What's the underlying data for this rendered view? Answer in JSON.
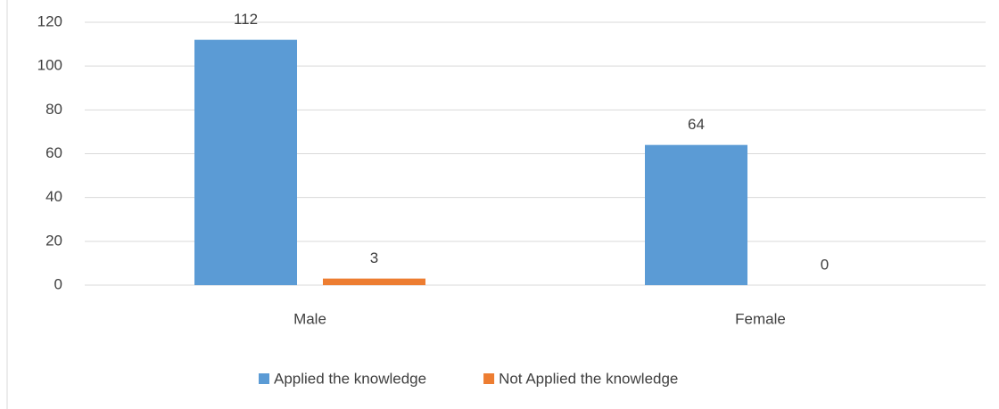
{
  "chart_data": {
    "type": "bar",
    "categories": [
      "Male",
      "Female"
    ],
    "series": [
      {
        "name": "Applied the knowledge",
        "color": "#5b9bd5",
        "values": [
          112,
          64
        ]
      },
      {
        "name": "Not Applied the knowledge",
        "color": "#ed7d31",
        "values": [
          3,
          0
        ]
      }
    ],
    "ylim": [
      0,
      120
    ],
    "yticks": [
      0,
      20,
      40,
      60,
      80,
      100,
      120
    ],
    "grid": true,
    "legend": "bottom"
  }
}
